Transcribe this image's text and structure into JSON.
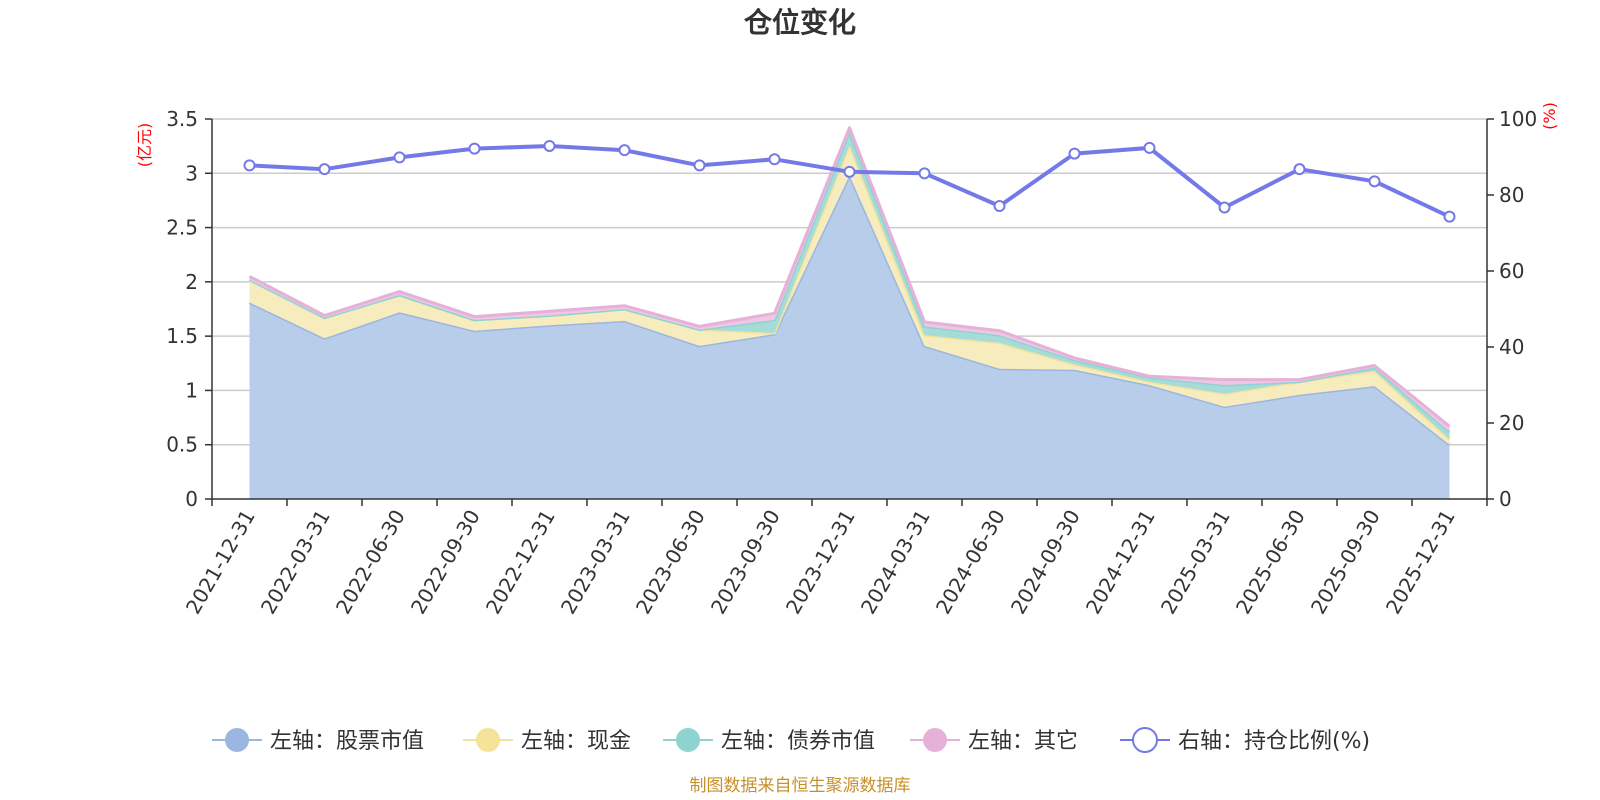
{
  "chart_data": {
    "type": "area",
    "title": "仓位变化",
    "left_axis_unit": "(亿元)",
    "right_axis_unit": "(%)",
    "categories": [
      "2021-12-31",
      "2022-03-31",
      "2022-06-30",
      "2022-09-30",
      "2022-12-31",
      "2023-03-31",
      "2023-06-30",
      "2023-09-30",
      "2023-12-31",
      "2024-03-31",
      "2024-06-30",
      "2024-09-30",
      "2024-12-31",
      "2025-03-31",
      "2025-06-30",
      "2025-09-30",
      "2025-12-31"
    ],
    "left_ylim": [
      0,
      3.5
    ],
    "left_ticks": [
      "0",
      "0.5",
      "1",
      "1.5",
      "2",
      "2.5",
      "3",
      "3.5"
    ],
    "right_ylim": [
      0,
      100
    ],
    "right_ticks": [
      "0",
      "20",
      "40",
      "60",
      "80",
      "100"
    ],
    "grid": true,
    "legend_position": "bottom",
    "series": [
      {
        "name": "左轴：股票市值",
        "axis": "left",
        "kind": "stacked-area",
        "color": "#9bb6e0",
        "fill": "#b8cde9",
        "values": [
          1.81,
          1.48,
          1.72,
          1.55,
          1.6,
          1.64,
          1.41,
          1.52,
          2.98,
          1.41,
          1.2,
          1.19,
          1.05,
          0.85,
          0.96,
          1.04,
          0.5
        ]
      },
      {
        "name": "左轴：现金",
        "axis": "left",
        "kind": "stacked-area",
        "color": "#f5e39a",
        "fill": "#f7ecbd",
        "values": [
          0.21,
          0.19,
          0.16,
          0.1,
          0.09,
          0.11,
          0.15,
          0.01,
          0.28,
          0.1,
          0.24,
          0.05,
          0.03,
          0.12,
          0.12,
          0.14,
          0.05
        ]
      },
      {
        "name": "左轴：债券市值",
        "axis": "left",
        "kind": "stacked-area",
        "color": "#8fd3d1",
        "fill": "#a6dcd8",
        "values": [
          0.0,
          0.0,
          0.0,
          0.0,
          0.0,
          0.0,
          0.0,
          0.12,
          0.12,
          0.08,
          0.07,
          0.04,
          0.04,
          0.08,
          0.0,
          0.03,
          0.07
        ]
      },
      {
        "name": "左轴：其它",
        "axis": "left",
        "kind": "stacked-area",
        "color": "#e6b1d8",
        "fill": "#edc7e4",
        "values": [
          0.03,
          0.02,
          0.03,
          0.03,
          0.04,
          0.03,
          0.03,
          0.06,
          0.04,
          0.04,
          0.04,
          0.02,
          0.01,
          0.05,
          0.02,
          0.02,
          0.05
        ]
      },
      {
        "name": "右轴：持仓比例(%)",
        "axis": "right",
        "kind": "line",
        "color": "#7479e8",
        "fill": "#ffffff",
        "values": [
          87.8,
          86.8,
          89.9,
          92.2,
          92.9,
          91.8,
          87.8,
          89.4,
          86.1,
          85.7,
          77.1,
          90.9,
          92.4,
          76.7,
          86.8,
          83.6,
          74.3
        ]
      }
    ],
    "source_note": "制图数据来自恒生聚源数据库"
  }
}
